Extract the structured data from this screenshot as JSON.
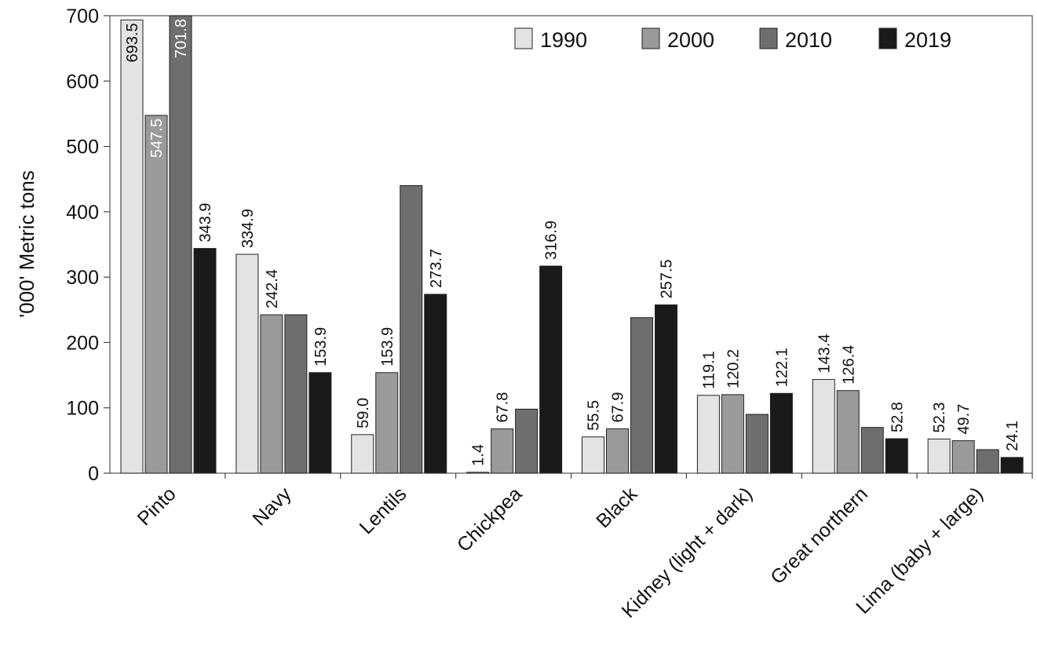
{
  "chart_data": {
    "type": "bar",
    "ylabel": "'000' Metric tons",
    "xlabel": "",
    "ylim": [
      0,
      700
    ],
    "yticks": [
      0,
      100,
      200,
      300,
      400,
      500,
      600,
      700
    ],
    "grid": false,
    "legend_position": "top-right",
    "categories": [
      "Pinto",
      "Navy",
      "Lentils",
      "Chickpea",
      "Black",
      "Kidney (light + dark)",
      "Great northern",
      "Lima (baby + large)"
    ],
    "series": [
      {
        "name": "1990",
        "color": "#e3e3e3",
        "values": [
          693.5,
          334.9,
          59.0,
          1.4,
          55.5,
          119.1,
          143.4,
          52.3
        ],
        "labels": [
          "693.5",
          "334.9",
          "59.0",
          "1.4",
          "55.5",
          "119.1",
          "143.4",
          "52.3"
        ]
      },
      {
        "name": "2000",
        "color": "#9a9a9a",
        "values": [
          547.5,
          242.4,
          153.9,
          67.8,
          67.9,
          120.2,
          126.4,
          49.7
        ],
        "labels": [
          "547.5",
          "242.4",
          "153.9",
          "67.8",
          "67.9",
          "120.2",
          "126.4",
          "49.7"
        ]
      },
      {
        "name": "2010",
        "color": "#6e6e6e",
        "values": [
          701.8,
          242.4,
          440.0,
          98.0,
          238.0,
          90.0,
          70.0,
          36.0
        ],
        "labels": [
          "701.8",
          "",
          "",
          "",
          "",
          "",
          "",
          ""
        ]
      },
      {
        "name": "2019",
        "color": "#1a1a1a",
        "values": [
          343.9,
          153.9,
          273.7,
          316.9,
          257.5,
          122.1,
          52.8,
          24.1
        ],
        "labels": [
          "343.9",
          "153.9",
          "273.7",
          "316.9",
          "257.5",
          "122.1",
          "52.8",
          "24.1"
        ]
      }
    ]
  }
}
